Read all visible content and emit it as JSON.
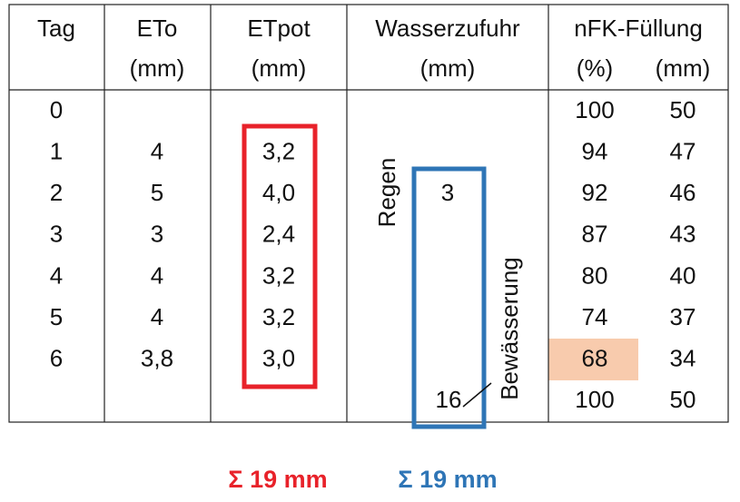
{
  "table": {
    "header_labels": [
      "Tag",
      "ETo",
      "ETpot",
      "Wasserzufuhr",
      "nFK-Füllung"
    ],
    "header_units": [
      "(mm)",
      "(mm)",
      "(mm)",
      "(%)",
      "(mm)"
    ],
    "rows": [
      [
        "0",
        null,
        null,
        null,
        "100",
        "50"
      ],
      [
        "1",
        "4",
        "3,2",
        null,
        "94",
        "47"
      ],
      [
        "2",
        "5",
        "4,0",
        "3",
        "92",
        "46"
      ],
      [
        "3",
        "3",
        "2,4",
        null,
        "87",
        "43"
      ],
      [
        "4",
        "4",
        "3,2",
        null,
        "80",
        "40"
      ],
      [
        "5",
        "4",
        "3,2",
        null,
        "74",
        "37"
      ],
      [
        "6",
        "3,8",
        "3,0",
        null,
        "68",
        "34"
      ],
      [
        null,
        null,
        null,
        "16",
        "100",
        "50"
      ]
    ]
  },
  "annotations": {
    "rain": "Regen",
    "irrigation": "Bewässerung",
    "sum_etpot": "Σ 19 mm",
    "sum_water": "Σ 19 mm"
  }
}
